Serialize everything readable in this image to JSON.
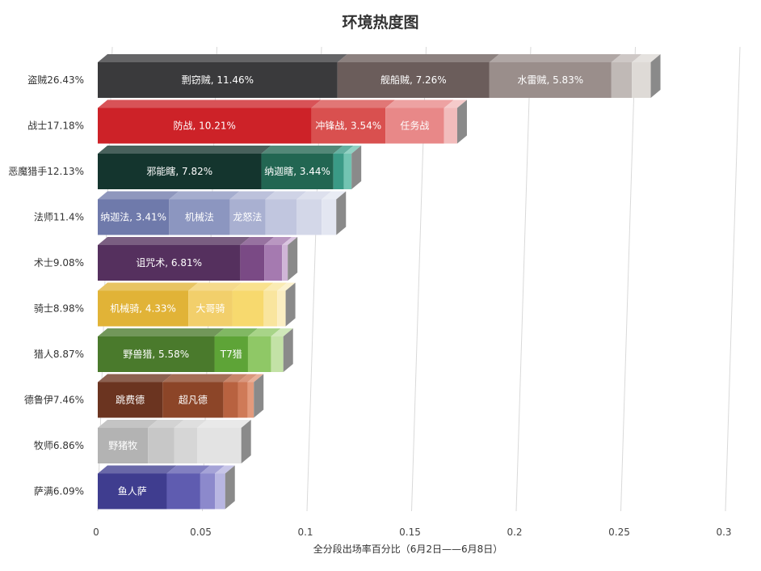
{
  "chart_data": {
    "type": "bar",
    "orientation": "horizontal",
    "stacked": true,
    "three_d": true,
    "title": "环境热度图",
    "xlabel": "全分段出场率百分比（6月2日——6月8日）",
    "ylabel": "",
    "xlim": [
      0,
      0.3
    ],
    "xticks": [
      0,
      0.05,
      0.1,
      0.15,
      0.2,
      0.25,
      0.3
    ],
    "xtick_labels": [
      "0",
      "0.05",
      "0.1",
      "0.15",
      "0.2",
      "0.25",
      "0.3"
    ],
    "grid": true,
    "legend": "none",
    "categories": [
      {
        "label": "盗贼26.43%",
        "total": 0.2643,
        "segments": [
          {
            "value": 0.1146,
            "label": "剽窃贼, 11.46%",
            "color": "#3a3a3c"
          },
          {
            "value": 0.0726,
            "label": "舰船贼, 7.26%",
            "color": "#6b5d5b"
          },
          {
            "value": 0.0583,
            "label": "水雷贼, 5.83%",
            "color": "#9a8e8b"
          },
          {
            "value": 0.0098,
            "label": "",
            "color": "#c0b9b6"
          },
          {
            "value": 0.009,
            "label": "",
            "color": "#dedad6"
          }
        ]
      },
      {
        "label": "战士17.18%",
        "total": 0.1718,
        "segments": [
          {
            "value": 0.1021,
            "label": "防战, 10.21%",
            "color": "#cd2228"
          },
          {
            "value": 0.0354,
            "label": "冲锋战, 3.54%",
            "color": "#d9504f"
          },
          {
            "value": 0.028,
            "label": "任务战",
            "color": "#e88888"
          },
          {
            "value": 0.0063,
            "label": "",
            "color": "#f2bcbc"
          }
        ]
      },
      {
        "label": "恶魔猎手12.13%",
        "total": 0.1213,
        "segments": [
          {
            "value": 0.0782,
            "label": "邪能瞎, 7.82%",
            "color": "#14352e"
          },
          {
            "value": 0.0344,
            "label": "纳迦瞎, 3.44%",
            "color": "#226652"
          },
          {
            "value": 0.005,
            "label": "",
            "color": "#3a9a86"
          },
          {
            "value": 0.0037,
            "label": "",
            "color": "#72c4b2"
          }
        ]
      },
      {
        "label": "法师11.4%",
        "total": 0.114,
        "segments": [
          {
            "value": 0.0341,
            "label": "纳迦法, 3.41%",
            "color": "#6f7aab"
          },
          {
            "value": 0.029,
            "label": "机械法",
            "color": "#8c96c0"
          },
          {
            "value": 0.017,
            "label": "龙怒法",
            "color": "#a9b0d1"
          },
          {
            "value": 0.015,
            "label": "",
            "color": "#c1c6df"
          },
          {
            "value": 0.0119,
            "label": "",
            "color": "#d3d7e8"
          },
          {
            "value": 0.007,
            "label": "",
            "color": "#e3e6f1"
          }
        ]
      },
      {
        "label": "术士9.08%",
        "total": 0.0908,
        "segments": [
          {
            "value": 0.0681,
            "label": "诅咒术, 6.81%",
            "color": "#55305e"
          },
          {
            "value": 0.0115,
            "label": "",
            "color": "#7a4a85"
          },
          {
            "value": 0.0085,
            "label": "",
            "color": "#a57ab0"
          },
          {
            "value": 0.0027,
            "label": "",
            "color": "#d0b5d7"
          }
        ]
      },
      {
        "label": "骑士8.98%",
        "total": 0.0898,
        "segments": [
          {
            "value": 0.0433,
            "label": "机械骑, 4.33%",
            "color": "#e1b337"
          },
          {
            "value": 0.021,
            "label": "大哥骑",
            "color": "#f2cf6b"
          },
          {
            "value": 0.015,
            "label": "",
            "color": "#f7d96e"
          },
          {
            "value": 0.0065,
            "label": "",
            "color": "#f9e59e"
          },
          {
            "value": 0.004,
            "label": "",
            "color": "#fbeec2"
          }
        ]
      },
      {
        "label": "猎人8.87%",
        "total": 0.0887,
        "segments": [
          {
            "value": 0.0558,
            "label": "野兽猎, 5.58%",
            "color": "#4a7a2c"
          },
          {
            "value": 0.016,
            "label": "T7猎",
            "color": "#5ea437"
          },
          {
            "value": 0.011,
            "label": "",
            "color": "#8fc866"
          },
          {
            "value": 0.0059,
            "label": "",
            "color": "#c3e2a6"
          }
        ]
      },
      {
        "label": "德鲁伊7.46%",
        "total": 0.0746,
        "segments": [
          {
            "value": 0.031,
            "label": "跳费德",
            "color": "#6b3420"
          },
          {
            "value": 0.029,
            "label": "超凡德",
            "color": "#8c4528"
          },
          {
            "value": 0.007,
            "label": "",
            "color": "#b86240"
          },
          {
            "value": 0.0046,
            "label": "",
            "color": "#cf7a58"
          },
          {
            "value": 0.003,
            "label": "",
            "color": "#e39a7c"
          }
        ]
      },
      {
        "label": "牧师6.86%",
        "total": 0.0686,
        "segments": [
          {
            "value": 0.024,
            "label": "野猪牧",
            "color": "#b3b3b3"
          },
          {
            "value": 0.0125,
            "label": "",
            "color": "#c7c7c7"
          },
          {
            "value": 0.011,
            "label": "",
            "color": "#d6d6d6"
          },
          {
            "value": 0.0211,
            "label": "",
            "color": "#e3e3e3"
          }
        ]
      },
      {
        "label": "萨满6.09%",
        "total": 0.0609,
        "segments": [
          {
            "value": 0.033,
            "label": "鱼人萨",
            "color": "#3f3d8f"
          },
          {
            "value": 0.016,
            "label": "",
            "color": "#5f5cb0"
          },
          {
            "value": 0.007,
            "label": "",
            "color": "#8c89cc"
          },
          {
            "value": 0.0049,
            "label": "",
            "color": "#b8b6e2"
          }
        ]
      }
    ]
  }
}
